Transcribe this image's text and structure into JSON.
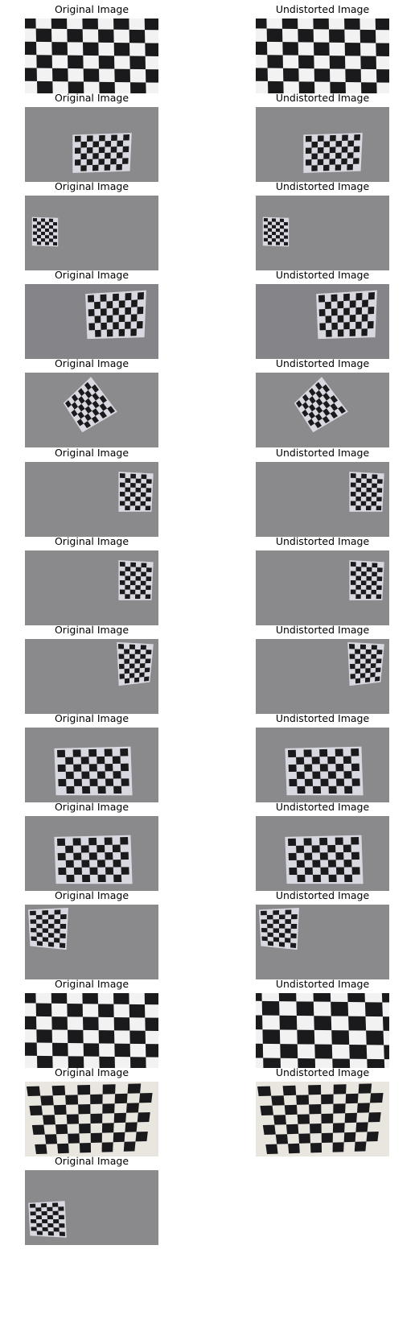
{
  "labels": {
    "original": "Original Image",
    "undistorted": "Undistorted Image"
  },
  "colors": {
    "wall": "#8a8a8d",
    "paper": "#d8d8e0",
    "square": "#1a1a1d"
  },
  "rows": [
    {
      "original": "checkerboard-closeup-full",
      "undistorted": "checkerboard-closeup-full"
    },
    {
      "original": "checkerboard-center-small",
      "undistorted": "checkerboard-center-small"
    },
    {
      "original": "checkerboard-left-small",
      "undistorted": "checkerboard-left-small"
    },
    {
      "original": "checkerboard-right-perspective",
      "undistorted": "checkerboard-right-perspective"
    },
    {
      "original": "checkerboard-rotated",
      "undistorted": "checkerboard-rotated"
    },
    {
      "original": "checkerboard-right-edge",
      "undistorted": "checkerboard-right-edge"
    },
    {
      "original": "checkerboard-right-edge",
      "undistorted": "checkerboard-right-edge"
    },
    {
      "original": "checkerboard-right-edge-tilted",
      "undistorted": "checkerboard-right-edge-tilted"
    },
    {
      "original": "checkerboard-center-large",
      "undistorted": "checkerboard-center-large"
    },
    {
      "original": "checkerboard-center-large",
      "undistorted": "checkerboard-center-large"
    },
    {
      "original": "checkerboard-top-left",
      "undistorted": "checkerboard-top-left"
    },
    {
      "original": "checkerboard-closeup-full",
      "undistorted": "checkerboard-closeup-warped"
    },
    {
      "original": "checkerboard-ceiling-closeup",
      "undistorted": "checkerboard-ceiling-closeup"
    },
    {
      "original": "checkerboard-bottom-left",
      "undistorted": null
    }
  ]
}
